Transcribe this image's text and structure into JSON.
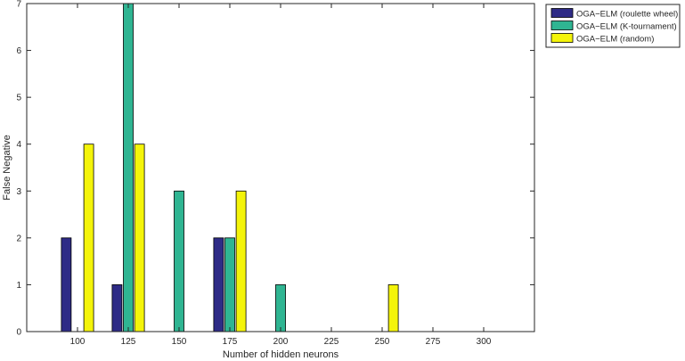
{
  "chart_data": {
    "type": "bar",
    "xlabel": "Number of hidden neurons",
    "ylabel": "False Negative",
    "categories": [
      "100",
      "125",
      "150",
      "175",
      "200",
      "225",
      "250",
      "275",
      "300"
    ],
    "xlim": [
      75,
      325
    ],
    "ylim": [
      0,
      7
    ],
    "yticks": [
      0,
      1,
      2,
      3,
      4,
      5,
      6,
      7
    ],
    "grid": false,
    "legend_position": "outside-top-right",
    "series": [
      {
        "name": "OGA−ELM (roulette wheel)",
        "color": "#2e2b86",
        "values": [
          2,
          1,
          0,
          2,
          0,
          0,
          0,
          0,
          0
        ]
      },
      {
        "name": "OGA−ELM (K-tournament)",
        "color": "#2fb592",
        "values": [
          0,
          7,
          3,
          2,
          1,
          0,
          0,
          0,
          0
        ]
      },
      {
        "name": "OGA−ELM (random)",
        "color": "#f4f40a",
        "values": [
          4,
          4,
          0,
          3,
          0,
          0,
          1,
          0,
          0
        ]
      }
    ]
  }
}
